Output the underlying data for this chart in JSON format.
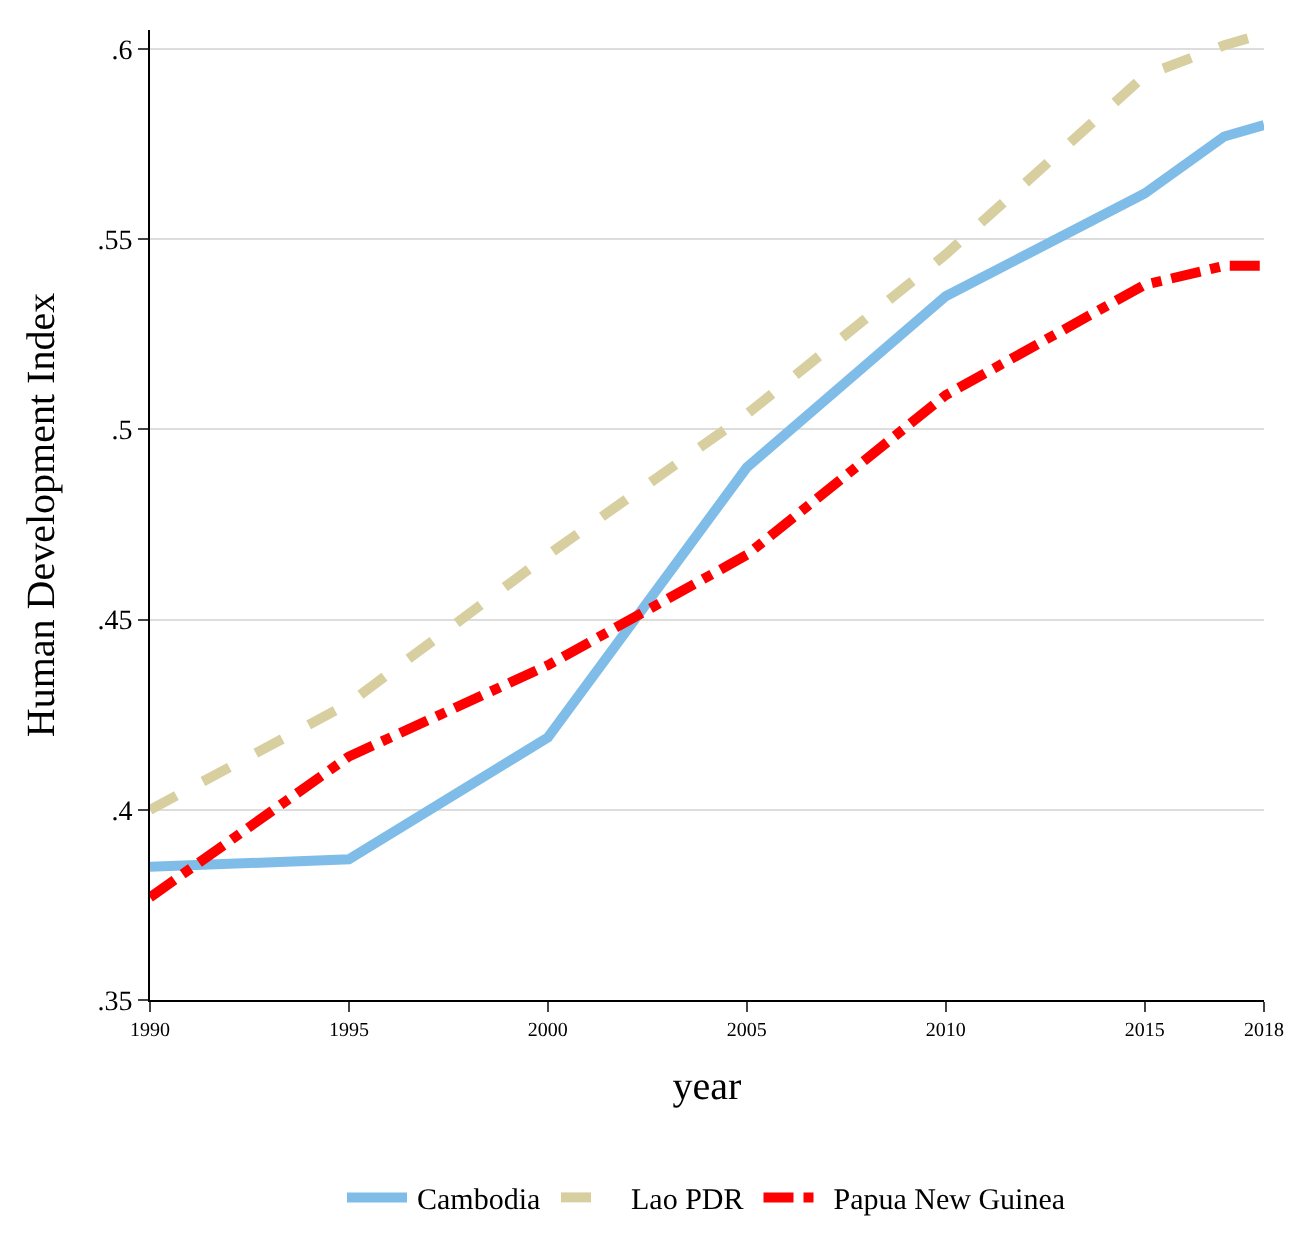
{
  "chart_data": {
    "type": "line",
    "xlabel": "year",
    "ylabel": "Human Development Index",
    "x": [
      1990,
      1995,
      2000,
      2005,
      2010,
      2015,
      2017,
      2018
    ],
    "series": [
      {
        "name": "Cambodia",
        "color": "#7fbde8",
        "line_style": "solid",
        "values": [
          0.385,
          0.387,
          0.419,
          0.49,
          0.535,
          0.562,
          0.577,
          0.58
        ]
      },
      {
        "name": "Lao PDR",
        "color": "#d8cfa0",
        "line_style": "dashed",
        "values": [
          0.4,
          0.428,
          0.467,
          0.504,
          0.546,
          0.593,
          0.601,
          0.604
        ]
      },
      {
        "name": "Papua New Guinea",
        "color": "#ff0000",
        "line_style": "dashdot",
        "values": [
          0.377,
          0.414,
          0.438,
          0.467,
          0.509,
          0.538,
          0.543,
          0.543
        ]
      }
    ],
    "xlim": [
      1990,
      2018
    ],
    "xticks": [
      1990,
      1995,
      2000,
      2005,
      2010,
      2015,
      2018
    ],
    "ylim": [
      0.35,
      0.605
    ],
    "yticks": [
      {
        "value": 0.35,
        "label": ".35"
      },
      {
        "value": 0.4,
        "label": ".4"
      },
      {
        "value": 0.45,
        "label": ".45"
      },
      {
        "value": 0.5,
        "label": ".5"
      },
      {
        "value": 0.55,
        "label": ".55"
      },
      {
        "value": 0.6,
        "label": ".6"
      }
    ],
    "grid": "y",
    "legend": "bottom",
    "marker": "none"
  }
}
